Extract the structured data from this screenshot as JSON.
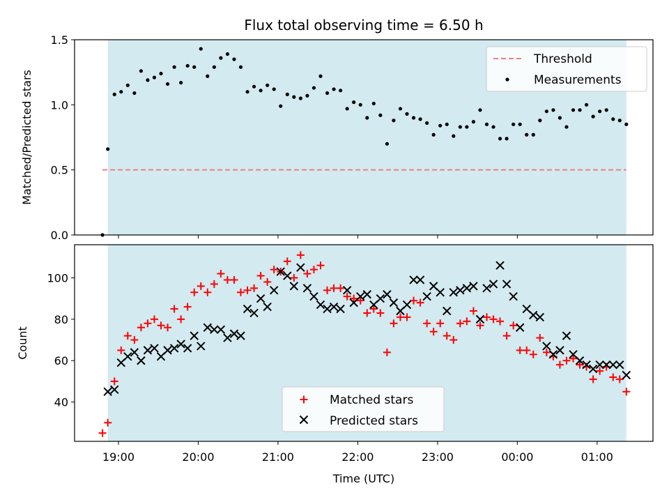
{
  "chart_data": [
    {
      "type": "scatter",
      "title": "Flux total observing time = 6.50 h",
      "ylabel": "Matched/Predicted stars",
      "xlabel": "",
      "ylim": [
        0,
        1.5
      ],
      "yticks": [
        "0.0",
        "0.5",
        "1.0",
        "1.5"
      ],
      "x_time_range": [
        "18:27",
        "01:42"
      ],
      "shaded_span": [
        "18:52",
        "01:22"
      ],
      "shade_color": "#d3eaf0",
      "legend_position": "top-right",
      "threshold": {
        "name": "Threshold",
        "value": 0.5,
        "x_start": "18:48",
        "x_end": "01:22",
        "color": "#f08080",
        "style": "dashed"
      },
      "series": [
        {
          "name": "Measurements",
          "marker": "dot",
          "color": "#000000",
          "points": [
            [
              "18:48",
              0.0
            ],
            [
              "18:52",
              0.66
            ],
            [
              "18:57",
              1.08
            ],
            [
              "19:02",
              1.1
            ],
            [
              "19:07",
              1.15
            ],
            [
              "19:12",
              1.09
            ],
            [
              "19:17",
              1.26
            ],
            [
              "19:22",
              1.19
            ],
            [
              "19:27",
              1.21
            ],
            [
              "19:32",
              1.24
            ],
            [
              "19:37",
              1.16
            ],
            [
              "19:42",
              1.29
            ],
            [
              "19:47",
              1.17
            ],
            [
              "19:52",
              1.3
            ],
            [
              "19:57",
              1.29
            ],
            [
              "20:02",
              1.43
            ],
            [
              "20:07",
              1.22
            ],
            [
              "20:12",
              1.29
            ],
            [
              "20:17",
              1.36
            ],
            [
              "20:22",
              1.39
            ],
            [
              "20:27",
              1.35
            ],
            [
              "20:32",
              1.29
            ],
            [
              "20:37",
              1.1
            ],
            [
              "20:42",
              1.14
            ],
            [
              "20:47",
              1.11
            ],
            [
              "20:52",
              1.15
            ],
            [
              "20:57",
              1.12
            ],
            [
              "21:02",
              0.99
            ],
            [
              "21:07",
              1.08
            ],
            [
              "21:12",
              1.06
            ],
            [
              "21:17",
              1.05
            ],
            [
              "21:22",
              1.07
            ],
            [
              "21:27",
              1.13
            ],
            [
              "21:32",
              1.22
            ],
            [
              "21:37",
              1.09
            ],
            [
              "21:42",
              1.12
            ],
            [
              "21:47",
              1.11
            ],
            [
              "21:52",
              0.97
            ],
            [
              "21:57",
              1.02
            ],
            [
              "22:02",
              1.0
            ],
            [
              "22:07",
              0.9
            ],
            [
              "22:12",
              1.01
            ],
            [
              "22:17",
              0.92
            ],
            [
              "22:22",
              0.7
            ],
            [
              "22:27",
              0.88
            ],
            [
              "22:32",
              0.97
            ],
            [
              "22:37",
              0.93
            ],
            [
              "22:42",
              0.9
            ],
            [
              "22:47",
              0.89
            ],
            [
              "22:52",
              0.86
            ],
            [
              "22:57",
              0.77
            ],
            [
              "23:02",
              0.84
            ],
            [
              "23:07",
              0.85
            ],
            [
              "23:12",
              0.76
            ],
            [
              "23:17",
              0.83
            ],
            [
              "23:22",
              0.83
            ],
            [
              "23:27",
              0.87
            ],
            [
              "23:32",
              0.96
            ],
            [
              "23:37",
              0.85
            ],
            [
              "23:42",
              0.83
            ],
            [
              "23:47",
              0.74
            ],
            [
              "23:52",
              0.74
            ],
            [
              "23:57",
              0.85
            ],
            [
              "00:02",
              0.85
            ],
            [
              "00:07",
              0.77
            ],
            [
              "00:12",
              0.77
            ],
            [
              "00:17",
              0.88
            ],
            [
              "00:22",
              0.95
            ],
            [
              "00:27",
              0.96
            ],
            [
              "00:32",
              0.9
            ],
            [
              "00:37",
              0.83
            ],
            [
              "00:42",
              0.96
            ],
            [
              "00:47",
              0.96
            ],
            [
              "00:52",
              1.0
            ],
            [
              "00:57",
              0.91
            ],
            [
              "01:02",
              0.95
            ],
            [
              "01:07",
              0.96
            ],
            [
              "01:12",
              0.89
            ],
            [
              "01:17",
              0.88
            ],
            [
              "01:22",
              0.85
            ]
          ]
        }
      ]
    },
    {
      "type": "scatter",
      "title": "",
      "ylabel": "Count",
      "xlabel": "Time (UTC)",
      "ylim": [
        21,
        116
      ],
      "yticks": [
        "40",
        "60",
        "80",
        "100"
      ],
      "x_time_range": [
        "18:27",
        "01:42"
      ],
      "xticks": [
        "19:00",
        "20:00",
        "21:00",
        "22:00",
        "23:00",
        "00:00",
        "01:00"
      ],
      "shaded_span": [
        "18:52",
        "01:22"
      ],
      "shade_color": "#d3eaf0",
      "legend_position": "bottom-center",
      "series": [
        {
          "name": "Matched stars",
          "marker": "plus",
          "color": "#ff0000",
          "points": [
            [
              "18:48",
              25
            ],
            [
              "18:52",
              30
            ],
            [
              "18:57",
              50
            ],
            [
              "19:02",
              65
            ],
            [
              "19:07",
              72
            ],
            [
              "19:12",
              70
            ],
            [
              "19:17",
              76
            ],
            [
              "19:22",
              78
            ],
            [
              "19:27",
              80
            ],
            [
              "19:32",
              77
            ],
            [
              "19:37",
              76
            ],
            [
              "19:42",
              85
            ],
            [
              "19:47",
              80
            ],
            [
              "19:52",
              86
            ],
            [
              "19:57",
              93
            ],
            [
              "20:02",
              96
            ],
            [
              "20:07",
              93
            ],
            [
              "20:12",
              97
            ],
            [
              "20:17",
              102
            ],
            [
              "20:22",
              99
            ],
            [
              "20:27",
              99
            ],
            [
              "20:32",
              93
            ],
            [
              "20:37",
              94
            ],
            [
              "20:42",
              95
            ],
            [
              "20:47",
              101
            ],
            [
              "20:52",
              98
            ],
            [
              "20:57",
              104
            ],
            [
              "21:02",
              103
            ],
            [
              "21:07",
              108
            ],
            [
              "21:12",
              100
            ],
            [
              "21:17",
              111
            ],
            [
              "21:22",
              102
            ],
            [
              "21:27",
              104
            ],
            [
              "21:32",
              106
            ],
            [
              "21:37",
              94
            ],
            [
              "21:42",
              95
            ],
            [
              "21:47",
              95
            ],
            [
              "21:52",
              91
            ],
            [
              "21:57",
              90
            ],
            [
              "22:02",
              89
            ],
            [
              "22:07",
              83
            ],
            [
              "22:12",
              85
            ],
            [
              "22:17",
              83
            ],
            [
              "22:22",
              64
            ],
            [
              "22:27",
              78
            ],
            [
              "22:32",
              81
            ],
            [
              "22:37",
              81
            ],
            [
              "22:42",
              89
            ],
            [
              "22:47",
              88
            ],
            [
              "22:52",
              78
            ],
            [
              "22:57",
              74
            ],
            [
              "23:02",
              78
            ],
            [
              "23:07",
              72
            ],
            [
              "23:12",
              70
            ],
            [
              "23:17",
              78
            ],
            [
              "23:22",
              79
            ],
            [
              "23:27",
              84
            ],
            [
              "23:32",
              77
            ],
            [
              "23:37",
              81
            ],
            [
              "23:42",
              80
            ],
            [
              "23:47",
              79
            ],
            [
              "23:52",
              72
            ],
            [
              "23:57",
              77
            ],
            [
              "00:02",
              65
            ],
            [
              "00:07",
              65
            ],
            [
              "00:12",
              63
            ],
            [
              "00:17",
              71
            ],
            [
              "00:22",
              64
            ],
            [
              "00:27",
              62
            ],
            [
              "00:32",
              58
            ],
            [
              "00:37",
              60
            ],
            [
              "00:42",
              61
            ],
            [
              "00:47",
              58
            ],
            [
              "00:52",
              57
            ],
            [
              "00:57",
              51
            ],
            [
              "01:02",
              55
            ],
            [
              "01:07",
              57
            ],
            [
              "01:12",
              52
            ],
            [
              "01:17",
              51
            ],
            [
              "01:22",
              45
            ]
          ]
        },
        {
          "name": "Predicted stars",
          "marker": "x",
          "color": "#000000",
          "points": [
            [
              "18:52",
              45
            ],
            [
              "18:57",
              46
            ],
            [
              "19:02",
              59
            ],
            [
              "19:07",
              62
            ],
            [
              "19:12",
              64
            ],
            [
              "19:17",
              60
            ],
            [
              "19:22",
              65
            ],
            [
              "19:27",
              66
            ],
            [
              "19:32",
              62
            ],
            [
              "19:37",
              65
            ],
            [
              "19:42",
              66
            ],
            [
              "19:47",
              68
            ],
            [
              "19:52",
              66
            ],
            [
              "19:57",
              72
            ],
            [
              "20:02",
              67
            ],
            [
              "20:07",
              76
            ],
            [
              "20:12",
              75
            ],
            [
              "20:17",
              75
            ],
            [
              "20:22",
              71
            ],
            [
              "20:27",
              73
            ],
            [
              "20:32",
              72
            ],
            [
              "20:37",
              85
            ],
            [
              "20:42",
              83
            ],
            [
              "20:47",
              90
            ],
            [
              "20:52",
              86
            ],
            [
              "20:57",
              94
            ],
            [
              "21:02",
              103
            ],
            [
              "21:07",
              101
            ],
            [
              "21:12",
              96
            ],
            [
              "21:17",
              105
            ],
            [
              "21:22",
              95
            ],
            [
              "21:27",
              91
            ],
            [
              "21:32",
              87
            ],
            [
              "21:37",
              85
            ],
            [
              "21:42",
              86
            ],
            [
              "21:47",
              85
            ],
            [
              "21:52",
              94
            ],
            [
              "21:57",
              88
            ],
            [
              "22:02",
              91
            ],
            [
              "22:07",
              92
            ],
            [
              "22:12",
              87
            ],
            [
              "22:17",
              90
            ],
            [
              "22:22",
              92
            ],
            [
              "22:27",
              88
            ],
            [
              "22:32",
              84
            ],
            [
              "22:37",
              87
            ],
            [
              "22:42",
              99
            ],
            [
              "22:47",
              99
            ],
            [
              "22:52",
              91
            ],
            [
              "22:57",
              96
            ],
            [
              "23:02",
              93
            ],
            [
              "23:07",
              84
            ],
            [
              "23:12",
              93
            ],
            [
              "23:17",
              94
            ],
            [
              "23:22",
              95
            ],
            [
              "23:27",
              96
            ],
            [
              "23:32",
              80
            ],
            [
              "23:37",
              95
            ],
            [
              "23:42",
              97
            ],
            [
              "23:47",
              106
            ],
            [
              "23:52",
              97
            ],
            [
              "23:57",
              91
            ],
            [
              "00:02",
              76
            ],
            [
              "00:07",
              85
            ],
            [
              "00:12",
              82
            ],
            [
              "00:17",
              81
            ],
            [
              "00:22",
              67
            ],
            [
              "00:27",
              63
            ],
            [
              "00:32",
              65
            ],
            [
              "00:37",
              72
            ],
            [
              "00:42",
              63
            ],
            [
              "00:47",
              60
            ],
            [
              "00:52",
              58
            ],
            [
              "00:57",
              56
            ],
            [
              "01:02",
              58
            ],
            [
              "01:07",
              58
            ],
            [
              "01:12",
              58
            ],
            [
              "01:17",
              58
            ],
            [
              "01:22",
              53
            ]
          ]
        }
      ]
    }
  ]
}
